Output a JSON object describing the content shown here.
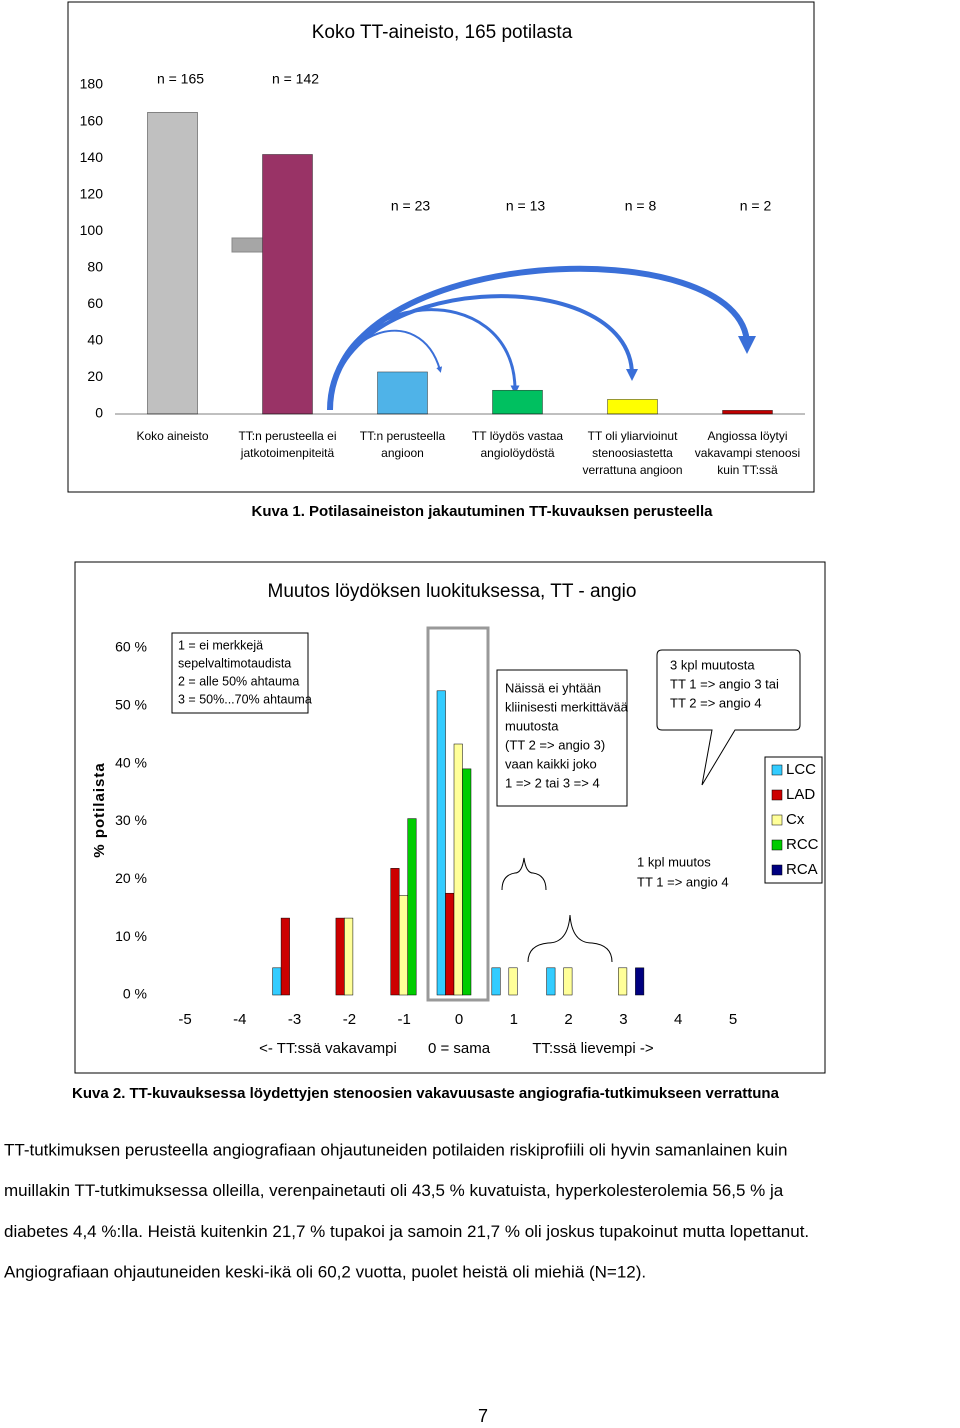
{
  "chart_data": [
    {
      "type": "bar",
      "title": "Koko TT-aineisto, 165 potilasta",
      "categories": [
        "Koko aineisto",
        "TT:n perusteella ei jatkotoimenpiteitä",
        "TT:n perusteella angioon",
        "TT löydös vastaa angiolöydöstä",
        "TT oli yliarvioinut stenoosiastetta verrattuna angioon",
        "Angiossa löytyi vakavampi stenoosi kuin TT:ssä"
      ],
      "values": [
        165,
        142,
        23,
        13,
        8,
        2
      ],
      "value_labels": [
        "n = 165",
        "n = 142",
        "n = 23",
        "n = 13",
        "n = 8",
        "n = 2"
      ],
      "colors": [
        "#c0c0c0",
        "#993366",
        "#4fb3e8",
        "#00c060",
        "#ffff00",
        "#c00000"
      ],
      "ylim": [
        0,
        180
      ],
      "yticks": [
        0,
        20,
        40,
        60,
        80,
        100,
        120,
        140,
        160,
        180
      ],
      "grid": false
    },
    {
      "type": "grouped_bar",
      "title": "Muutos löydöksen luokituksessa, TT - angio",
      "y_label": "% potilaista",
      "categories": [
        "-5",
        "-4",
        "-3",
        "-2",
        "-1",
        "0",
        "1",
        "2",
        "3",
        "4",
        "5"
      ],
      "x_labels": [
        "<- TT:ssä vakavampi",
        "0 = sama",
        "TT:ssä lievempi ->"
      ],
      "series": [
        {
          "name": "LCC",
          "color": "#33ccff",
          "values": [
            0,
            0,
            4.7,
            0,
            0,
            52.6,
            4.7,
            4.7,
            0,
            0,
            0
          ]
        },
        {
          "name": "LAD",
          "color": "#cc0000",
          "values": [
            0,
            0,
            13.3,
            13.3,
            21.9,
            17.6,
            0,
            0,
            0,
            0,
            0
          ]
        },
        {
          "name": "Cx",
          "color": "#ffff99",
          "values": [
            0,
            0,
            0,
            13.3,
            17.2,
            43.4,
            4.7,
            4.7,
            4.7,
            0,
            0
          ]
        },
        {
          "name": "RCC",
          "color": "#00cc00",
          "values": [
            0,
            0,
            0,
            0,
            30.5,
            39.1,
            0,
            0,
            0,
            0,
            0
          ]
        },
        {
          "name": "RCA",
          "color": "#000080",
          "values": [
            0,
            0,
            0,
            0,
            0,
            0,
            0,
            0,
            4.7,
            0,
            0
          ]
        }
      ],
      "ylim": [
        0,
        60
      ],
      "yticks": [
        {
          "value": 0,
          "label": "0 %"
        },
        {
          "value": 10,
          "label": "10 %"
        },
        {
          "value": 20,
          "label": "20 %"
        },
        {
          "value": 30,
          "label": "30 %"
        },
        {
          "value": 40,
          "label": "40 %"
        },
        {
          "value": 50,
          "label": "50 %"
        },
        {
          "value": 60,
          "label": "60 %"
        }
      ],
      "grid": false,
      "legend": "right",
      "annotations": [
        {
          "lines": [
            "1 = ei merkkejä",
            "sepelvaltimotaudista",
            "2 = alle 50% ahtauma",
            "3 = 50%...70% ahtauma"
          ]
        },
        {
          "lines": [
            "Näissä ei yhtään",
            "kliinisesti merkittävää",
            "muutosta",
            "(TT 2 => angio 3)",
            "vaan kaikki joko",
            "1 => 2 tai 3 => 4"
          ]
        },
        {
          "lines": [
            "3 kpl muutosta",
            "TT 1 => angio 3 tai",
            "TT 2 => angio 4"
          ]
        },
        {
          "lines": [
            "1 kpl muutos",
            "TT 1 => angio 4"
          ]
        }
      ]
    }
  ],
  "captions": [
    "Kuva 1. Potilasaineiston jakautuminen TT-kuvauksen perusteella",
    "Kuva 2. TT-kuvauksessa löydettyjen stenoosien vakavuusaste angiografia-tutkimukseen verrattuna"
  ],
  "paragraph": {
    "lines": [
      "TT-tutkimuksen perusteella angiografiaan ohjautuneiden potilaiden riskiprofiili oli hyvin samanlainen kuin",
      "muillakin TT-tutkimuksessa olleilla, verenpainetauti oli 43,5 % kuvatuista, hyperkolesterolemia 56,5 % ja",
      "diabetes 4,4 %:lla. Heistä kuitenkin 21,7 % tupakoi ja samoin 21,7 % oli joskus tupakoinut mutta lopettanut.",
      "Angiografiaan ohjautuneiden keski-ikä oli 60,2 vuotta, puolet heistä oli miehiä (N=12)."
    ]
  },
  "page_number": "7"
}
